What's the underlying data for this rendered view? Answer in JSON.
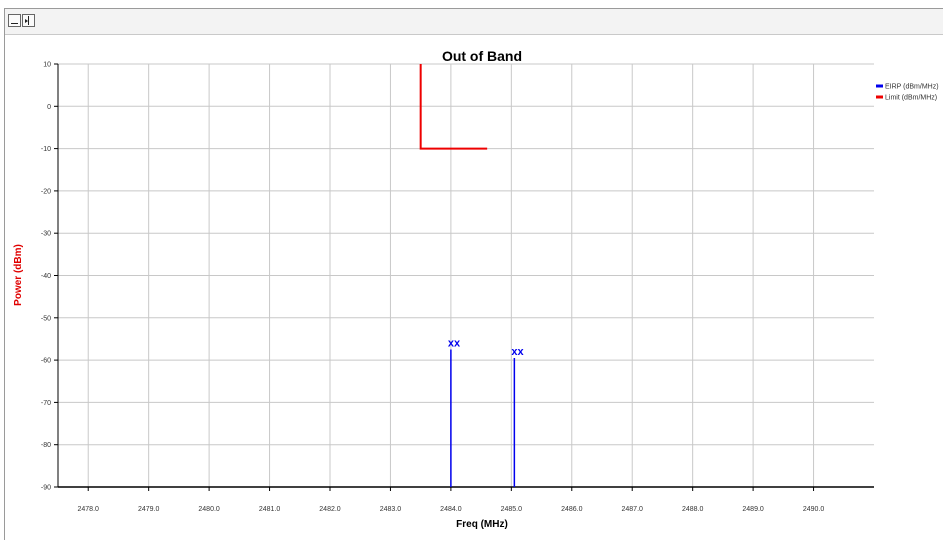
{
  "toolbar": {
    "buttons": [
      {
        "icon": "minimize-icon"
      },
      {
        "icon": "toggle-panel-icon"
      }
    ]
  },
  "chart_data": {
    "type": "line",
    "title": "Out of Band",
    "xlabel": "Freq (MHz)",
    "ylabel": "Power (dBm)",
    "xlim": [
      2477.5,
      2491
    ],
    "ylim": [
      -90,
      10
    ],
    "x_ticks": [
      2478.0,
      2479.0,
      2480.0,
      2481.0,
      2482.0,
      2483.0,
      2484.0,
      2485.0,
      2486.0,
      2487.0,
      2488.0,
      2489.0,
      2490.0
    ],
    "x_tick_labels": [
      "2478.0",
      "2479.0",
      "2480.0",
      "2481.0",
      "2482.0",
      "2483.0",
      "2484.0",
      "2485.0",
      "2486.0",
      "2487.0",
      "2488.0",
      "2489.0",
      "2490.0"
    ],
    "y_ticks": [
      10,
      0,
      -10,
      -20,
      -30,
      -40,
      -50,
      -60,
      -70,
      -80,
      -90
    ],
    "y_tick_labels": [
      "10",
      "0",
      "-10",
      "-20",
      "-30",
      "-40",
      "-50",
      "-60",
      "-70",
      "-80",
      "-90"
    ],
    "grid": true,
    "legend_position": "right",
    "axis_label_colors": {
      "x": "#000000",
      "y": "#e00000"
    },
    "series": [
      {
        "name": "EIRP (dBm/MHz)",
        "color": "#0000ee",
        "style": "spikes",
        "points": [
          {
            "x": 2484.0,
            "y": -57.5
          },
          {
            "x": 2485.05,
            "y": -59.5
          }
        ],
        "marker_label": "xx"
      },
      {
        "name": "Limit (dBm/MHz)",
        "color": "#ee0000",
        "style": "line",
        "points": [
          {
            "x": 2483.5,
            "y": 10
          },
          {
            "x": 2483.5,
            "y": -10
          },
          {
            "x": 2484.6,
            "y": -10
          }
        ]
      }
    ]
  }
}
